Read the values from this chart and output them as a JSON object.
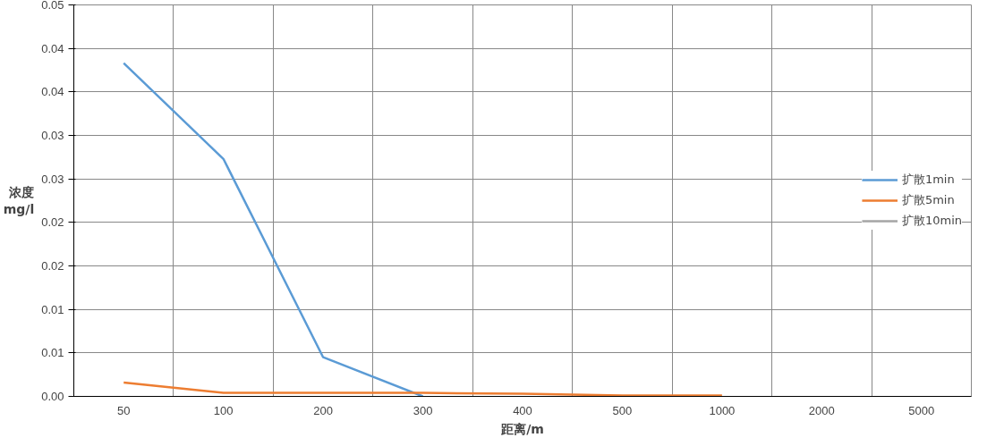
{
  "chart_data": {
    "type": "line",
    "xlabel": "距离/m",
    "ylabel": "浓度\nmg/l",
    "categories": [
      "50",
      "100",
      "200",
      "300",
      "400",
      "500",
      "1000",
      "2000",
      "5000"
    ],
    "series": [
      {
        "name": "扩散1min",
        "color": "#5b9bd5",
        "values": [
          0.0383,
          0.0273,
          0.0045,
          0.0,
          null,
          null,
          null,
          null,
          null
        ]
      },
      {
        "name": "扩散5min",
        "color": "#ed7d31",
        "values": [
          0.0016,
          0.0004,
          0.0004,
          0.0004,
          0.0003,
          0.0001,
          0.0001,
          null,
          null
        ]
      },
      {
        "name": "扩散10min",
        "color": "#a5a5a5",
        "values": [
          null,
          null,
          null,
          null,
          null,
          null,
          null,
          null,
          null
        ]
      }
    ],
    "ylim": [
      0,
      0.045
    ],
    "yticks": [
      {
        "value": 0,
        "label": "0.00"
      },
      {
        "value": 0.005,
        "label": "0.01"
      },
      {
        "value": 0.01,
        "label": "0.01"
      },
      {
        "value": 0.015,
        "label": "0.02"
      },
      {
        "value": 0.02,
        "label": "0.02"
      },
      {
        "value": 0.025,
        "label": "0.03"
      },
      {
        "value": 0.03,
        "label": "0.03"
      },
      {
        "value": 0.035,
        "label": "0.04"
      },
      {
        "value": 0.04,
        "label": "0.04"
      },
      {
        "value": 0.045,
        "label": "0.05"
      }
    ],
    "grid": true,
    "legend": "right",
    "marker": "none",
    "line_style": "solid"
  }
}
